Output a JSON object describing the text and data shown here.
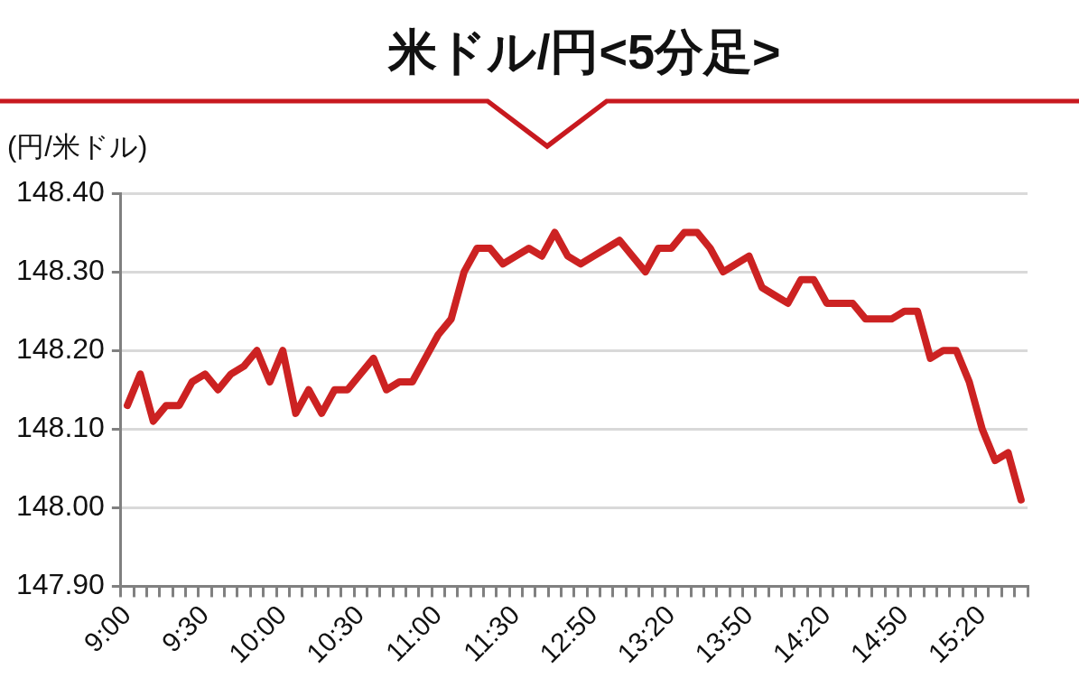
{
  "chart_data": {
    "type": "line",
    "title": "米ドル/円<5分足>",
    "ylabel": "(円/米ドル)",
    "categories": [
      "9:00",
      null,
      null,
      null,
      null,
      null,
      "9:30",
      null,
      null,
      null,
      null,
      null,
      "10:00",
      null,
      null,
      null,
      null,
      null,
      "10:30",
      null,
      null,
      null,
      null,
      null,
      "11:00",
      null,
      null,
      null,
      null,
      null,
      "11:30",
      null,
      null,
      null,
      null,
      null,
      "12:50",
      null,
      null,
      null,
      null,
      null,
      "13:20",
      null,
      null,
      null,
      null,
      null,
      "13:50",
      null,
      null,
      null,
      null,
      null,
      "14:20",
      null,
      null,
      null,
      null,
      null,
      "14:50",
      null,
      null,
      null,
      null,
      null,
      "15:20",
      null,
      null,
      null
    ],
    "series": [
      {
        "color": "#cc2222",
        "values": [
          148.13,
          148.17,
          148.11,
          148.13,
          148.13,
          148.16,
          148.17,
          148.15,
          148.17,
          148.18,
          148.2,
          148.16,
          148.2,
          148.12,
          148.15,
          148.12,
          148.15,
          148.15,
          148.17,
          148.19,
          148.15,
          148.16,
          148.16,
          148.19,
          148.22,
          148.24,
          148.3,
          148.33,
          148.33,
          148.31,
          148.32,
          148.33,
          148.32,
          148.35,
          148.32,
          148.31,
          148.32,
          148.33,
          148.34,
          148.32,
          148.3,
          148.33,
          148.33,
          148.35,
          148.35,
          148.33,
          148.3,
          148.31,
          148.32,
          148.28,
          148.27,
          148.26,
          148.29,
          148.29,
          148.26,
          148.26,
          148.26,
          148.24,
          148.24,
          148.24,
          148.25,
          148.25,
          148.19,
          148.2,
          148.2,
          148.16,
          148.1,
          148.06,
          148.07,
          148.01
        ]
      }
    ],
    "ylim": [
      147.9,
      148.4
    ],
    "yticks": [
      {
        "value": 147.9,
        "label": "147.90"
      },
      {
        "value": 148.0,
        "label": "148.00"
      },
      {
        "value": 148.1,
        "label": "148.10"
      },
      {
        "value": 148.2,
        "label": "148.20"
      },
      {
        "value": 148.3,
        "label": "148.30"
      },
      {
        "value": 148.4,
        "label": "148.40"
      }
    ],
    "grid": "y",
    "legend": false,
    "marker": "none",
    "line_style": "solid"
  }
}
